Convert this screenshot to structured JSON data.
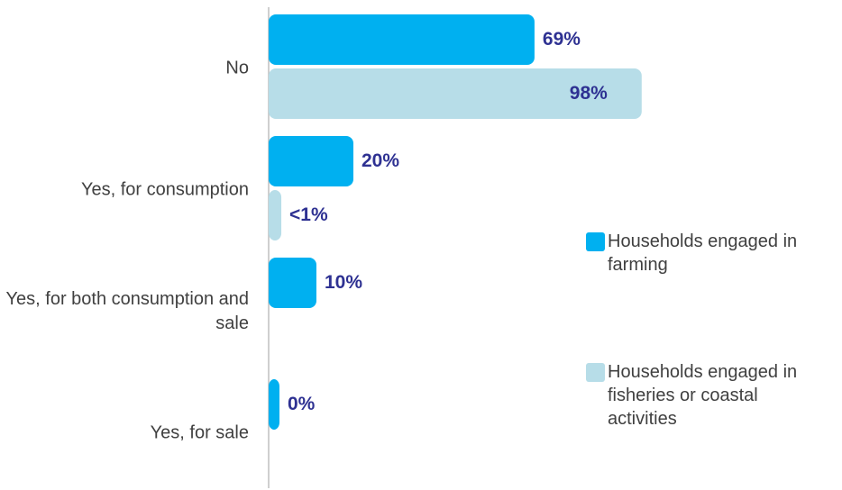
{
  "chart_data": {
    "type": "bar",
    "orientation": "horizontal",
    "categories": [
      "No",
      "Yes, for consumption",
      "Yes, for both consumption and sale",
      "Yes, for sale"
    ],
    "series": [
      {
        "name": "Households engaged in farming",
        "color": "#00b0f0",
        "values": [
          69,
          20,
          10,
          0
        ],
        "value_labels": [
          "69%",
          "20%",
          "10%",
          "0%"
        ]
      },
      {
        "name": "Households engaged in fisheries or coastal activities",
        "color": "#b7dde8",
        "values": [
          98,
          0.5,
          null,
          null
        ],
        "value_labels": [
          "98%",
          "<1%",
          null,
          null
        ]
      }
    ]
  }
}
